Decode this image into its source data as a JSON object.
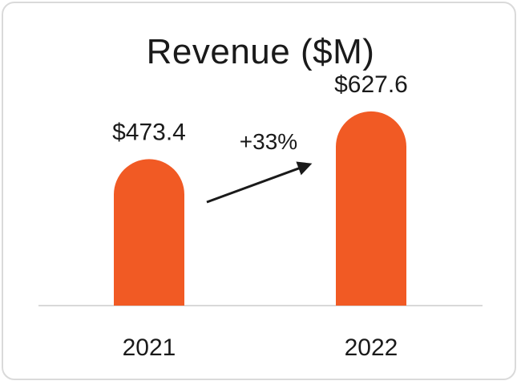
{
  "chart_data": {
    "type": "bar",
    "title": "Revenue ($M)",
    "categories": [
      "2021",
      "2022"
    ],
    "values": [
      473.4,
      627.6
    ],
    "value_labels": [
      "$473.4",
      "$627.6"
    ],
    "change_label": "+33%",
    "bar_color": "#F15A24",
    "ylim": [
      0,
      700
    ],
    "xlabel": "",
    "ylabel": "",
    "grid": false
  }
}
